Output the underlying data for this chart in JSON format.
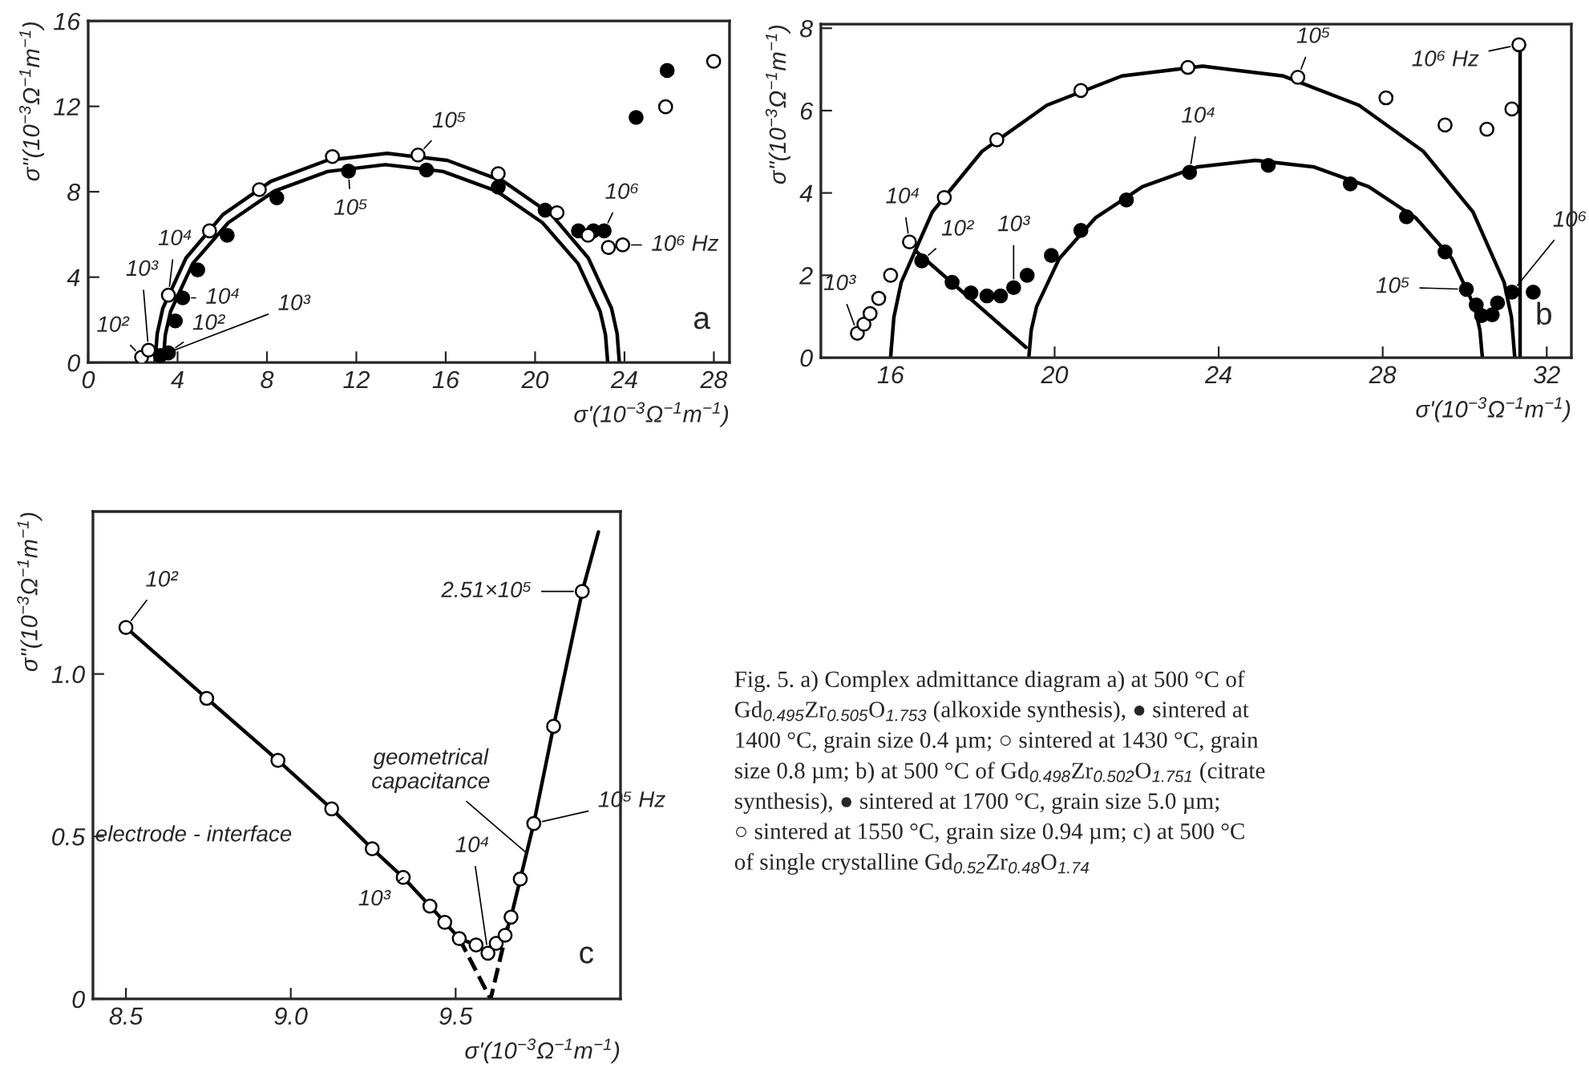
{
  "chart_data": [
    {
      "type": "scatter",
      "xlabel": "σ'(10$^{−3}$Ω$^{−1}$m$^{−1}$)",
      "ylabel": "σ''(10$^{−3}$Ω$^{−1}$m$^{−1}$)",
      "xlim": [
        0,
        28.7
      ],
      "ylim": [
        0,
        16
      ],
      "xticks": [
        0,
        4,
        8,
        12,
        16,
        20,
        24,
        28
      ],
      "yticks": [
        0,
        4,
        8,
        12,
        16
      ],
      "series": [
        {
          "type": "scatter",
          "marker": "circle",
          "color": "#ffffff",
          "x": [
            2.39,
            2.7,
            3.59,
            5.43,
            7.66,
            10.93,
            14.76,
            18.35,
            20.98,
            22.37,
            23.28,
            23.92,
            25.84,
            27.99
          ],
          "values": [
            0.25,
            0.58,
            3.16,
            6.17,
            8.1,
            9.65,
            9.72,
            8.85,
            7.02,
            5.96,
            5.39,
            5.51,
            11.98,
            14.11
          ]
        },
        {
          "type": "scatter",
          "marker": "circle",
          "color": "#000000",
          "x": [
            3.23,
            3.59,
            3.9,
            4.23,
            4.9,
            6.22,
            8.44,
            11.65,
            15.14,
            18.35,
            20.45,
            21.94,
            22.61,
            23.09,
            24.52,
            25.91
          ],
          "values": [
            0.33,
            0.45,
            1.95,
            3.03,
            4.34,
            5.96,
            7.72,
            8.97,
            9.02,
            8.22,
            7.14,
            6.17,
            6.17,
            6.17,
            11.48,
            13.68
          ]
        },
        {
          "type": "line",
          "line_style": "solid",
          "color": "#000000",
          "x": [
            2.99,
            3.09,
            3.34,
            4.38,
            6.03,
            8.18,
            10.69,
            13.38,
            16.07,
            18.58,
            20.73,
            22.38,
            23.42,
            23.67,
            23.77
          ],
          "values": [
            0,
            1.36,
            2.54,
            4.9,
            6.93,
            8.49,
            9.47,
            9.8,
            9.47,
            8.49,
            6.93,
            4.9,
            2.54,
            1.36,
            0
          ]
        },
        {
          "type": "line",
          "line_style": "solid",
          "color": "#000000",
          "x": [
            3.35,
            3.45,
            3.69,
            4.68,
            6.27,
            8.33,
            10.72,
            13.3,
            15.88,
            18.28,
            20.33,
            21.92,
            22.91,
            23.15,
            23.25
          ],
          "values": [
            0,
            1.29,
            2.4,
            4.64,
            6.55,
            8.03,
            8.95,
            9.27,
            8.95,
            8.03,
            6.55,
            4.64,
            2.4,
            1.29,
            0
          ]
        }
      ],
      "annotations": [
        {
          "text": "10²",
          "x": 2.39,
          "y": 0.25
        },
        {
          "text": "10³",
          "x": 2.7,
          "y": 0.58
        },
        {
          "text": "10⁴",
          "x": 3.59,
          "y": 3.16
        },
        {
          "text": "10⁵",
          "x": 14.76,
          "y": 9.72
        },
        {
          "text": "10⁶ Hz",
          "x": 23.92,
          "y": 5.51
        },
        {
          "text": "10²",
          "x": 3.59,
          "y": 0.45
        },
        {
          "text": "10³",
          "x": 3.23,
          "y": 0.33
        },
        {
          "text": "10⁴",
          "x": 4.23,
          "y": 3.03
        },
        {
          "text": "10⁵",
          "x": 11.65,
          "y": 8.97
        },
        {
          "text": "10⁶",
          "x": 23.09,
          "y": 6.17
        },
        "a"
      ]
    },
    {
      "type": "scatter",
      "xlabel": "σ'(10$^{−3}$Ω$^{−1}$m$^{−1}$)",
      "ylabel": "σ''(10$^{−3}$Ω$^{−1}$m$^{−1}$)",
      "xlim": [
        14.3,
        32.6
      ],
      "ylim": [
        0,
        8.1
      ],
      "xticks": [
        16,
        20,
        24,
        28,
        32
      ],
      "yticks": [
        0,
        2,
        4,
        6,
        8
      ],
      "series": [
        {
          "type": "scatter",
          "marker": "circle",
          "color": "#ffffff",
          "x": [
            15.19,
            15.35,
            15.5,
            15.71,
            16.0,
            16.46,
            17.31,
            18.59,
            20.64,
            23.25,
            25.93,
            28.08,
            29.52,
            30.54,
            31.15,
            31.32
          ],
          "values": [
            0.59,
            0.81,
            1.07,
            1.44,
            2.0,
            2.81,
            3.89,
            5.29,
            6.49,
            7.05,
            6.81,
            6.31,
            5.65,
            5.55,
            6.04,
            7.6
          ]
        },
        {
          "type": "scatter",
          "marker": "circle",
          "color": "#000000",
          "x": [
            16.76,
            17.5,
            17.96,
            18.35,
            18.68,
            19.0,
            19.33,
            19.92,
            20.64,
            21.75,
            23.29,
            25.21,
            27.21,
            28.58,
            29.52,
            30.04,
            30.28,
            30.41,
            30.67,
            30.8,
            31.15,
            31.67
          ],
          "values": [
            2.35,
            1.83,
            1.57,
            1.5,
            1.5,
            1.7,
            2.0,
            2.48,
            3.09,
            3.83,
            4.5,
            4.67,
            4.22,
            3.42,
            2.57,
            1.66,
            1.28,
            1.02,
            1.04,
            1.33,
            1.59,
            1.59
          ]
        },
        {
          "type": "line",
          "line_style": "solid",
          "color": "#000000",
          "x": [
            16.0,
            16.08,
            16.26,
            17.02,
            18.23,
            19.81,
            21.64,
            23.61,
            25.58,
            27.42,
            28.99,
            30.2,
            30.96,
            31.14,
            31.22
          ],
          "values": [
            0,
            0.98,
            1.83,
            3.54,
            5.01,
            6.13,
            6.84,
            7.08,
            6.84,
            6.13,
            5.01,
            3.54,
            1.83,
            0.98,
            0
          ]
        },
        {
          "type": "line",
          "line_style": "solid",
          "color": "#000000",
          "x": [
            19.37,
            19.43,
            19.56,
            20.11,
            20.99,
            22.14,
            23.47,
            24.9,
            26.33,
            27.66,
            28.81,
            29.69,
            30.24,
            30.37,
            30.43
          ],
          "values": [
            0,
            0.67,
            1.24,
            2.4,
            3.39,
            4.15,
            4.63,
            4.79,
            4.63,
            4.15,
            3.39,
            2.4,
            1.24,
            0.67,
            0
          ]
        },
        {
          "type": "line",
          "line_style": "solid",
          "color": "#000000",
          "x": [
            16.6,
            19.3
          ],
          "values": [
            2.6,
            0.25
          ]
        },
        {
          "type": "line",
          "line_style": "solid",
          "color": "#000000",
          "x": [
            31.35,
            31.35
          ],
          "values": [
            0,
            7.7
          ]
        }
      ],
      "annotations": [
        {
          "text": "10³",
          "x": 15.19,
          "y": 0.59
        },
        {
          "text": "10⁴",
          "x": 16.46,
          "y": 2.81
        },
        {
          "text": "10⁵",
          "x": 25.93,
          "y": 6.81
        },
        {
          "text": "10⁶ Hz",
          "x": 31.32,
          "y": 7.6
        },
        {
          "text": "10²",
          "x": 16.76,
          "y": 2.35
        },
        {
          "text": "10³",
          "x": 19.0,
          "y": 1.7
        },
        {
          "text": "10⁴",
          "x": 23.29,
          "y": 4.5
        },
        {
          "text": "10⁵",
          "x": 30.04,
          "y": 1.66
        },
        {
          "text": "10⁶",
          "x": 31.15,
          "y": 1.59
        },
        "b"
      ]
    },
    {
      "type": "scatter",
      "xlabel": "σ'(10$^{−3}$Ω$^{−1}$m$^{−1}$)",
      "ylabel": "σ''(10$^{−3}$Ω$^{−1}$m$^{−1}$)",
      "xlim": [
        8.4,
        10.0
      ],
      "ylim": [
        0,
        1.5
      ],
      "xticks": [
        8.5,
        {
          "value": 9.0,
          "label": "9.0"
        },
        9.5
      ],
      "yticks": [
        0,
        0.5,
        {
          "value": 1.0,
          "label": "1.0"
        }
      ],
      "series": [
        {
          "type": "line",
          "line_style": "solid",
          "color": "#000000",
          "x": [
            8.5,
            8.745,
            8.961,
            9.124,
            9.247,
            9.341,
            9.422,
            9.467,
            9.511,
            9.562,
            9.598,
            9.623,
            9.65,
            9.668,
            9.696,
            9.737,
            9.797,
            9.884,
            9.933
          ],
          "values": [
            1.143,
            0.925,
            0.734,
            0.585,
            0.462,
            0.374,
            0.286,
            0.236,
            0.186,
            0.166,
            0.141,
            0.171,
            0.196,
            0.252,
            0.369,
            0.54,
            0.839,
            1.254,
            1.437
          ]
        },
        {
          "type": "line",
          "line_style": "dashed",
          "color": "#000000",
          "x": [
            9.511,
            9.606,
            9.66
          ],
          "values": [
            0.186,
            0,
            0.23
          ]
        },
        {
          "type": "scatter",
          "marker": "circle",
          "color": "#ffffff",
          "x": [
            8.5,
            8.745,
            8.961,
            9.124,
            9.247,
            9.341,
            9.422,
            9.467,
            9.511,
            9.562,
            9.598,
            9.623,
            9.65,
            9.668,
            9.696,
            9.737,
            9.797,
            9.884
          ],
          "values": [
            1.143,
            0.925,
            0.734,
            0.585,
            0.462,
            0.374,
            0.286,
            0.236,
            0.186,
            0.166,
            0.141,
            0.171,
            0.196,
            0.252,
            0.369,
            0.54,
            0.839,
            1.254
          ]
        }
      ],
      "annotations": [
        {
          "text": "10²",
          "x": 8.5,
          "y": 1.143
        },
        {
          "text": "10³",
          "x": 9.341,
          "y": 0.374
        },
        {
          "text": "10⁴",
          "x": 9.598,
          "y": 0.141
        },
        {
          "text": "10⁵ Hz",
          "x": 9.737,
          "y": 0.54
        },
        {
          "text": "2.51×10⁵",
          "x": 9.884,
          "y": 1.254
        },
        {
          "text": "geometrical\ncapacitance",
          "x": 9.715,
          "y": 0.449
        },
        {
          "text": "electrode - interface",
          "x": 9.124,
          "y": 0.585
        },
        "c",
        "Fig. 5. a) Complex admittance diagram a) at 500 °C of\nGd$_{0.495}$Zr$_{0.505}$O$_{1.753}$ (alkoxide synthesis), ● sintered at\n1400 °C, grain size 0.4 µm; ○ sintered at 1430 °C, grain\nsize 0.8 µm; b) at 500 °C of Gd$_{0.498}$Zr$_{0.502}$O$_{1.751}$ (citrate\nsynthesis), ● sintered at 1700 °C, grain size 5.0 µm;\n○ sintered at 1550 °C, grain size 0.94 µm; c) at 500 °C\nof single crystalline Gd$_{0.52}$Zr$_{0.48}$O$_{1.74}$"
      ]
    }
  ]
}
